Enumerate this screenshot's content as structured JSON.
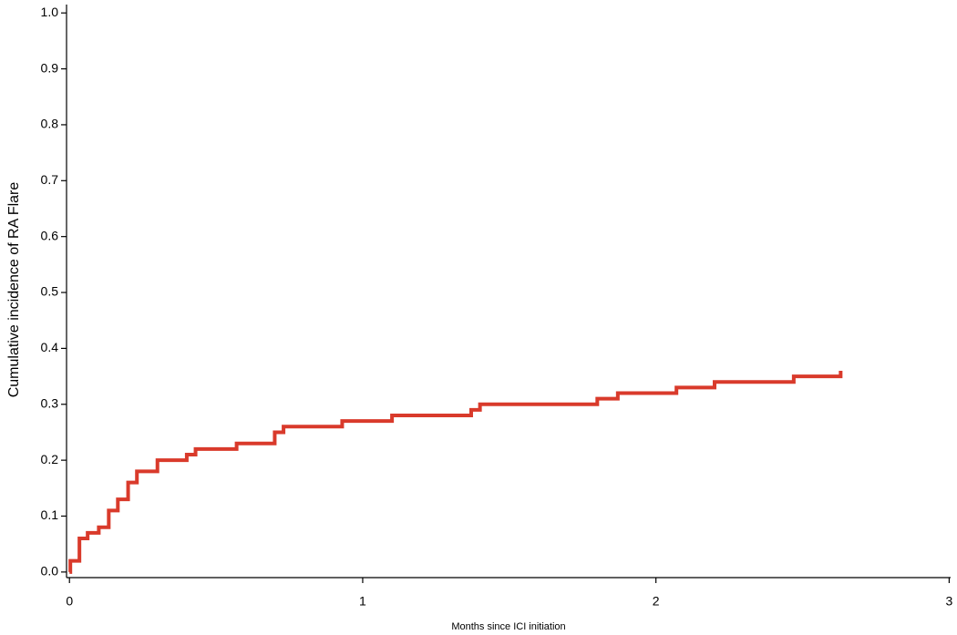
{
  "chart_data": {
    "type": "step",
    "x_label": "Months since ICI initiation",
    "y_label": "Cumulative incidence of RA Flare",
    "x": [
      0,
      0.003,
      0.034,
      0.062,
      0.1,
      0.134,
      0.165,
      0.2,
      0.23,
      0.3,
      0.4,
      0.43,
      0.57,
      0.7,
      0.73,
      0.93,
      1.1,
      1.37,
      1.4,
      1.8,
      1.87,
      2.07,
      2.2,
      2.47,
      2.63
    ],
    "values": [
      0,
      0.02,
      0.06,
      0.07,
      0.08,
      0.11,
      0.13,
      0.16,
      0.18,
      0.2,
      0.21,
      0.22,
      0.23,
      0.25,
      0.26,
      0.27,
      0.28,
      0.29,
      0.3,
      0.31,
      0.32,
      0.33,
      0.34,
      0.35,
      0.36
    ],
    "color": "#d93a2b",
    "xlim": [
      -0.01,
      3.005
    ],
    "xticks": [
      0,
      1,
      2,
      3
    ],
    "ylim": [
      -0.01,
      1.015
    ],
    "yticks": [
      {
        "value": 0,
        "label": "0.0"
      },
      0.1,
      0.2,
      0.3,
      0.4,
      0.5,
      0.6,
      0.7,
      0.8,
      0.9,
      {
        "value": 1,
        "label": "1.0"
      }
    ]
  }
}
